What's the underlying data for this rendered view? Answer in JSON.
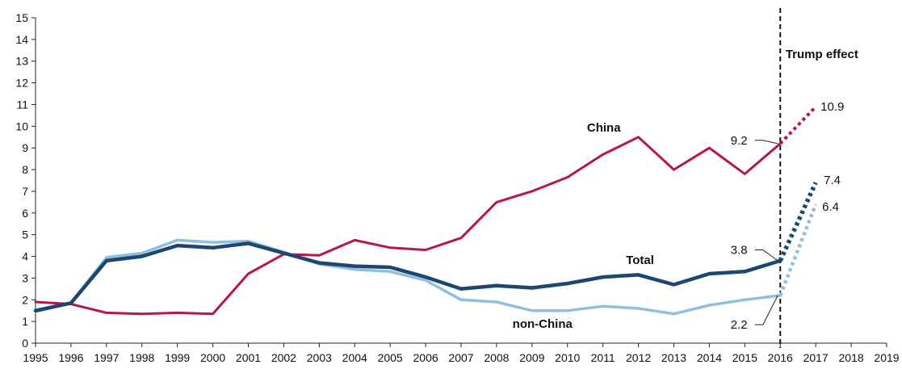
{
  "chart_data": {
    "type": "line",
    "xlim": [
      1995,
      2019
    ],
    "ylim": [
      0,
      15
    ],
    "x_ticks": [
      "1995",
      "1996",
      "1997",
      "1998",
      "1999",
      "2000",
      "2001",
      "2002",
      "2003",
      "2004",
      "2005",
      "2006",
      "2007",
      "2008",
      "2009",
      "2010",
      "2011",
      "2012",
      "2013",
      "2014",
      "2015",
      "2016",
      "2017",
      "2018",
      "2019"
    ],
    "y_ticks": [
      "0",
      "1",
      "2",
      "3",
      "4",
      "5",
      "6",
      "7",
      "8",
      "9",
      "10",
      "11",
      "12",
      "13",
      "14",
      "15"
    ],
    "grid": false,
    "series": [
      {
        "name": "China",
        "color": "#b5174b",
        "x": [
          1995,
          1996,
          1997,
          1998,
          1999,
          2000,
          2001,
          2002,
          2003,
          2004,
          2005,
          2006,
          2007,
          2008,
          2009,
          2010,
          2011,
          2012,
          2013,
          2014,
          2015,
          2016
        ],
        "values": [
          1.9,
          1.8,
          1.4,
          1.35,
          1.4,
          1.35,
          3.2,
          4.1,
          4.05,
          4.75,
          4.4,
          4.3,
          4.85,
          6.5,
          7.0,
          7.65,
          8.7,
          9.5,
          8.0,
          9.0,
          7.8,
          9.2
        ],
        "projection": {
          "x": [
            2016,
            2017
          ],
          "values": [
            9.2,
            10.9
          ]
        }
      },
      {
        "name": "Total",
        "color": "#1e4670",
        "x": [
          1995,
          1996,
          1997,
          1998,
          1999,
          2000,
          2001,
          2002,
          2003,
          2004,
          2005,
          2006,
          2007,
          2008,
          2009,
          2010,
          2011,
          2012,
          2013,
          2014,
          2015,
          2016
        ],
        "values": [
          1.5,
          1.85,
          3.8,
          4.0,
          4.5,
          4.4,
          4.6,
          4.15,
          3.7,
          3.55,
          3.5,
          3.05,
          2.5,
          2.65,
          2.55,
          2.75,
          3.05,
          3.15,
          2.7,
          3.2,
          3.3,
          3.8
        ],
        "projection": {
          "x": [
            2016,
            2017
          ],
          "values": [
            3.8,
            7.4
          ]
        }
      },
      {
        "name": "non-China",
        "color": "#8fbfdc",
        "x": [
          1995,
          1996,
          1997,
          1998,
          1999,
          2000,
          2001,
          2002,
          2003,
          2004,
          2005,
          2006,
          2007,
          2008,
          2009,
          2010,
          2011,
          2012,
          2013,
          2014,
          2015,
          2016
        ],
        "values": [
          1.45,
          1.85,
          3.95,
          4.15,
          4.75,
          4.65,
          4.7,
          4.2,
          3.65,
          3.4,
          3.3,
          2.9,
          2.0,
          1.9,
          1.5,
          1.5,
          1.7,
          1.6,
          1.35,
          1.75,
          2.0,
          2.2
        ],
        "projection": {
          "x": [
            2016,
            2017
          ],
          "values": [
            2.2,
            6.4
          ]
        }
      }
    ],
    "annotations": [
      {
        "text": "Trump effect",
        "x": 2016
      },
      {
        "text": "9.2",
        "x": 2016,
        "y": 9.2
      },
      {
        "text": "10.9",
        "x": 2017,
        "y": 10.9
      },
      {
        "text": "3.8",
        "x": 2016,
        "y": 3.8
      },
      {
        "text": "7.4",
        "x": 2017,
        "y": 7.4
      },
      {
        "text": "6.4",
        "x": 2017,
        "y": 6.4
      },
      {
        "text": "2.2",
        "x": 2016,
        "y": 2.2
      }
    ]
  }
}
